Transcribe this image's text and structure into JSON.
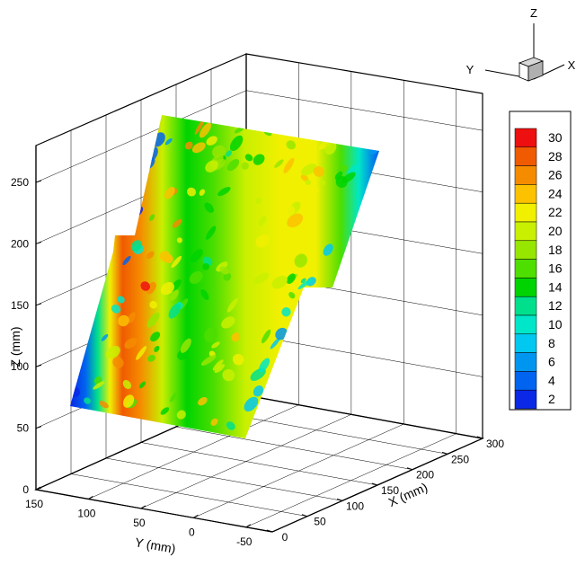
{
  "chart_data": {
    "type": "heatmap",
    "projection": "3d-surface-contour",
    "xlabel": "X (mm)",
    "ylabel": "Y (mm)",
    "zlabel": "Z (mm)",
    "x_ticks": [
      "0",
      "50",
      "100",
      "150",
      "200",
      "250",
      "300"
    ],
    "y_ticks": [
      "150",
      "100",
      "50",
      "0",
      "-50"
    ],
    "z_ticks": [
      "0",
      "50",
      "100",
      "150",
      "200",
      "250"
    ],
    "xlim": [
      0,
      300
    ],
    "ylim": [
      150,
      -75
    ],
    "zlim": [
      0,
      280
    ],
    "grid": true,
    "legend": {
      "placement": "right",
      "levels": [
        "30",
        "28",
        "26",
        "24",
        "22",
        "20",
        "18",
        "16",
        "14",
        "12",
        "10",
        "8",
        "6",
        "4",
        "2"
      ],
      "colors": [
        "#ee1010",
        "#f05a00",
        "#f58c00",
        "#fcc200",
        "#f0f000",
        "#c8f000",
        "#96e600",
        "#4ede00",
        "#00d400",
        "#00e08c",
        "#00e6c8",
        "#00c8f0",
        "#0096f0",
        "#0064f0",
        "#0a28e6"
      ]
    },
    "profile_stops": [
      {
        "t": 0.0,
        "value": 2
      },
      {
        "t": 0.05,
        "value": 4
      },
      {
        "t": 0.09,
        "value": 12
      },
      {
        "t": 0.13,
        "value": 22
      },
      {
        "t": 0.17,
        "value": 28
      },
      {
        "t": 0.23,
        "value": 25
      },
      {
        "t": 0.3,
        "value": 19
      },
      {
        "t": 0.38,
        "value": 13
      },
      {
        "t": 0.47,
        "value": 15
      },
      {
        "t": 0.57,
        "value": 19
      },
      {
        "t": 0.68,
        "value": 22
      },
      {
        "t": 0.8,
        "value": 21
      },
      {
        "t": 0.88,
        "value": 16
      },
      {
        "t": 0.94,
        "value": 9
      },
      {
        "t": 1.0,
        "value": 3
      }
    ]
  },
  "triad": {
    "z": "Z",
    "x": "X",
    "y": "Y"
  }
}
